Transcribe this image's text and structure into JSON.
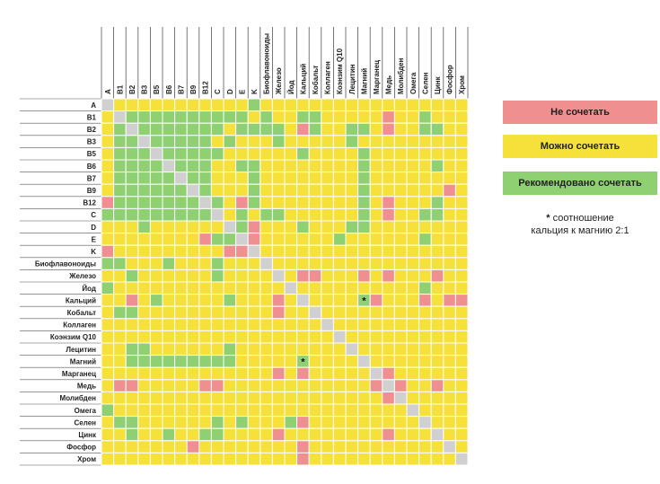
{
  "chart_data": {
    "type": "heatmap",
    "columns": [
      "A",
      "B1",
      "B2",
      "B3",
      "B5",
      "B6",
      "B7",
      "B9",
      "B12",
      "C",
      "D",
      "E",
      "K",
      "Биофлавоноиды",
      "Железо",
      "Йод",
      "Кальций",
      "Кобальт",
      "Коллаген",
      "Коэнзим Q10",
      "Лецитин",
      "Магний",
      "Марганец",
      "Медь",
      "Молибден",
      "Омега",
      "Селен",
      "Цинк",
      "Фосфор",
      "Хром"
    ],
    "rows": [
      "A",
      "B1",
      "B2",
      "B3",
      "B5",
      "B6",
      "B7",
      "B9",
      "B12",
      "C",
      "D",
      "E",
      "K",
      "Биофлавоноиды",
      "Железо",
      "Йод",
      "Кальций",
      "Кобальт",
      "Коллаген",
      "Коэнзим Q10",
      "Лецитин",
      "Магний",
      "Марганец",
      "Медь",
      "Молибден",
      "Омега",
      "Селен",
      "Цинк",
      "Фосфор",
      "Хром"
    ],
    "codes": {
      "N": "Не сочетать",
      "Y": "Можно сочетать",
      "G": "Рекомендовано сочетать",
      "-": ""
    },
    "grid": [
      "-YYYYYYYYYYYGYYYYYYYYYYYYYYYYY",
      "Y-GGGGGGGGGGYGYYGGYYYYYNYYGYYY",
      "YG-GGGGGGGYGGGGYNGYYGGYNYYGGYY",
      "YGG-GGGGGYGYYYGYYYYYGYYYYYYYYY",
      "YGGG-GGGGGYYYYYYGYYYYGYYYYYYYY",
      "YGGGG-GGGYYGGYYYYYYYYGYYYYYGYY",
      "YGGGGG-GGYYYGYYYYYYYYGYYYYYYYY",
      "YGGGGGG-GYYYGYYYYYYYYGYYYYYYNY",
      "NGGGGGGG-GYNGYYYYYYYYGYNYYYGYY",
      "GGGGGGGGG-YGYGGYYYYYYGYNYYGGYY",
      "YYYGYYYYYY-GNYYYGYYYGGYYYYYYYY",
      "YYYYYYYYNGG-NYYYYYYGYYYYYYGYYY",
      "NYYYYYYYYYNN-YYYYYYYYYYYYYYYYY",
      "GGYYYGYYYGYYY-YYYYYYYYYYYYYYYY",
      "YYGYYYYYYGYYYY-YNNYYYNYNYYYNYY",
      "GYYYYYYYYYYYYYY-YYYYYYYYYYGYYY",
      "YYNYGYYYYYGYYYNY-YYYYGNYYYNYNN",
      "YGGYYYYYYYYYYYNYY-YYYYYYYYYYYY",
      "YYYYYYYYYYYYYYYYYY-YYYYYYYYYYY",
      "YYYYYYYYYYYYYYYYYYY-YYYYYYYYYY",
      "YYGGYYYYYYGYYYYYYYYY-YYYYYYYYY",
      "YYGGGGGGGGGYYYYYGYYYY-YYYYYYYY",
      "YYYYYYYYYYYYYYNYNYYYYY-NYYYYYY",
      "YNNYYYYYNNYYYYYYYYYYYYN-NYYNYY",
      "YYYYYYYYYYYYYYYYYYYYYYYN-YYYYY",
      "GYYYYYYYYYYYYYYYYYYYYYYYY-YYYY",
      "YGGYYYYYYGYGYYYGNYYYYYYYYY-YYY",
      "YYGYYGYYGGYYYYNYYYYYYYYNYYY-YY",
      "YYYYYYYNYYYYYYYYNYYYYYYYYYYY-Y",
      "YYYYYYYYYYYYYYYYNYYYYYYYYYYYY-"
    ]
  },
  "legend": [
    {
      "code": "N",
      "label": "Не сочетать"
    },
    {
      "code": "Y",
      "label": "Можно сочетать"
    },
    {
      "code": "G",
      "label": "Рекомендовано сочетать"
    }
  ],
  "footnote": {
    "star": "*",
    "line1": "соотношение",
    "line2": "кальция к магнию 2:1"
  },
  "annotations": [
    {
      "row": "Кальций",
      "col": "Магний",
      "text": "*"
    },
    {
      "row": "Магний",
      "col": "Кальций",
      "text": "*"
    }
  ],
  "colors": {
    "N": "#ef8f8f",
    "Y": "#f6e13a",
    "G": "#8fd072",
    "-": "#d0d0d0",
    "grid": "#ffffff"
  }
}
